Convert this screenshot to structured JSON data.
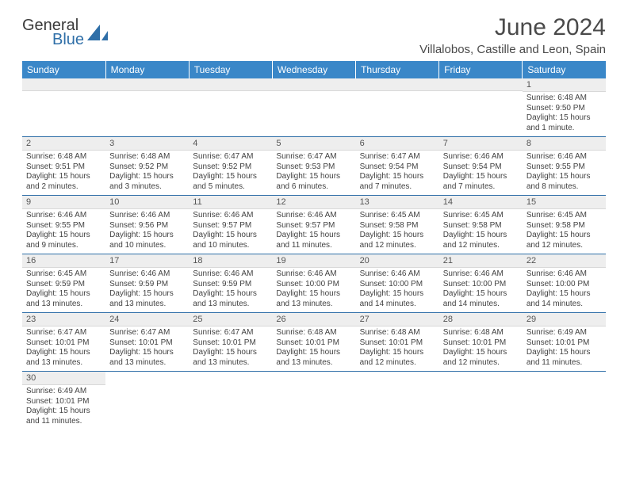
{
  "logo": {
    "line1": "General",
    "line2": "Blue"
  },
  "title": "June 2024",
  "location": "Villalobos, Castille and Leon, Spain",
  "colors": {
    "header_bg": "#3a87c8",
    "header_text": "#ffffff",
    "daynum_bg": "#eeeeee",
    "rule": "#2f6fa8",
    "text": "#424242"
  },
  "daynames": [
    "Sunday",
    "Monday",
    "Tuesday",
    "Wednesday",
    "Thursday",
    "Friday",
    "Saturday"
  ],
  "weeks": [
    [
      null,
      null,
      null,
      null,
      null,
      null,
      {
        "n": "1",
        "sr": "6:48 AM",
        "ss": "9:50 PM",
        "dl": "15 hours and 1 minute."
      }
    ],
    [
      {
        "n": "2",
        "sr": "6:48 AM",
        "ss": "9:51 PM",
        "dl": "15 hours and 2 minutes."
      },
      {
        "n": "3",
        "sr": "6:48 AM",
        "ss": "9:52 PM",
        "dl": "15 hours and 3 minutes."
      },
      {
        "n": "4",
        "sr": "6:47 AM",
        "ss": "9:52 PM",
        "dl": "15 hours and 5 minutes."
      },
      {
        "n": "5",
        "sr": "6:47 AM",
        "ss": "9:53 PM",
        "dl": "15 hours and 6 minutes."
      },
      {
        "n": "6",
        "sr": "6:47 AM",
        "ss": "9:54 PM",
        "dl": "15 hours and 7 minutes."
      },
      {
        "n": "7",
        "sr": "6:46 AM",
        "ss": "9:54 PM",
        "dl": "15 hours and 7 minutes."
      },
      {
        "n": "8",
        "sr": "6:46 AM",
        "ss": "9:55 PM",
        "dl": "15 hours and 8 minutes."
      }
    ],
    [
      {
        "n": "9",
        "sr": "6:46 AM",
        "ss": "9:55 PM",
        "dl": "15 hours and 9 minutes."
      },
      {
        "n": "10",
        "sr": "6:46 AM",
        "ss": "9:56 PM",
        "dl": "15 hours and 10 minutes."
      },
      {
        "n": "11",
        "sr": "6:46 AM",
        "ss": "9:57 PM",
        "dl": "15 hours and 10 minutes."
      },
      {
        "n": "12",
        "sr": "6:46 AM",
        "ss": "9:57 PM",
        "dl": "15 hours and 11 minutes."
      },
      {
        "n": "13",
        "sr": "6:45 AM",
        "ss": "9:58 PM",
        "dl": "15 hours and 12 minutes."
      },
      {
        "n": "14",
        "sr": "6:45 AM",
        "ss": "9:58 PM",
        "dl": "15 hours and 12 minutes."
      },
      {
        "n": "15",
        "sr": "6:45 AM",
        "ss": "9:58 PM",
        "dl": "15 hours and 12 minutes."
      }
    ],
    [
      {
        "n": "16",
        "sr": "6:45 AM",
        "ss": "9:59 PM",
        "dl": "15 hours and 13 minutes."
      },
      {
        "n": "17",
        "sr": "6:46 AM",
        "ss": "9:59 PM",
        "dl": "15 hours and 13 minutes."
      },
      {
        "n": "18",
        "sr": "6:46 AM",
        "ss": "9:59 PM",
        "dl": "15 hours and 13 minutes."
      },
      {
        "n": "19",
        "sr": "6:46 AM",
        "ss": "10:00 PM",
        "dl": "15 hours and 13 minutes."
      },
      {
        "n": "20",
        "sr": "6:46 AM",
        "ss": "10:00 PM",
        "dl": "15 hours and 14 minutes."
      },
      {
        "n": "21",
        "sr": "6:46 AM",
        "ss": "10:00 PM",
        "dl": "15 hours and 14 minutes."
      },
      {
        "n": "22",
        "sr": "6:46 AM",
        "ss": "10:00 PM",
        "dl": "15 hours and 14 minutes."
      }
    ],
    [
      {
        "n": "23",
        "sr": "6:47 AM",
        "ss": "10:01 PM",
        "dl": "15 hours and 13 minutes."
      },
      {
        "n": "24",
        "sr": "6:47 AM",
        "ss": "10:01 PM",
        "dl": "15 hours and 13 minutes."
      },
      {
        "n": "25",
        "sr": "6:47 AM",
        "ss": "10:01 PM",
        "dl": "15 hours and 13 minutes."
      },
      {
        "n": "26",
        "sr": "6:48 AM",
        "ss": "10:01 PM",
        "dl": "15 hours and 13 minutes."
      },
      {
        "n": "27",
        "sr": "6:48 AM",
        "ss": "10:01 PM",
        "dl": "15 hours and 12 minutes."
      },
      {
        "n": "28",
        "sr": "6:48 AM",
        "ss": "10:01 PM",
        "dl": "15 hours and 12 minutes."
      },
      {
        "n": "29",
        "sr": "6:49 AM",
        "ss": "10:01 PM",
        "dl": "15 hours and 11 minutes."
      }
    ],
    [
      {
        "n": "30",
        "sr": "6:49 AM",
        "ss": "10:01 PM",
        "dl": "15 hours and 11 minutes."
      },
      null,
      null,
      null,
      null,
      null,
      null
    ]
  ],
  "labels": {
    "sunrise": "Sunrise:",
    "sunset": "Sunset:",
    "daylight": "Daylight:"
  }
}
